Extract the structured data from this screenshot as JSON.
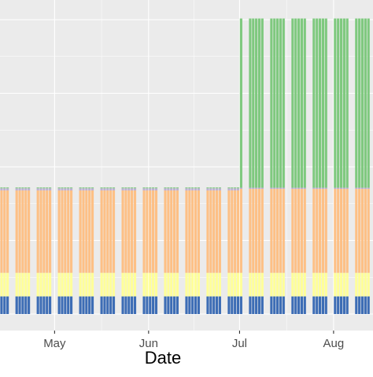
{
  "chart_data": {
    "type": "bar",
    "stacked": true,
    "title": "",
    "xlabel": "Date",
    "ylabel": "",
    "x_tick_labels": [
      "May",
      "Jun",
      "Jul",
      "Aug"
    ],
    "x_tick_dates": [
      "2022-05-01",
      "2022-06-01",
      "2022-07-01",
      "2022-08-01"
    ],
    "x_range": [
      "2022-04-13",
      "2022-08-14"
    ],
    "y_tick_labels": [],
    "ylim": [
      0,
      100
    ],
    "grid": true,
    "series": [
      {
        "color": "#3D6DB5",
        "values_by_period": {
          "before_jul": 6.0,
          "from_jul": 6.0
        }
      },
      {
        "color": "#FFFF99",
        "values_by_period": {
          "before_jul": 8.0,
          "from_jul": 8.0
        }
      },
      {
        "color": "#FDC086",
        "values_by_period": {
          "before_jul": 28.0,
          "from_jul": 28.5
        }
      },
      {
        "color": "#BEAED4",
        "values_by_period": {
          "before_jul": 0.7,
          "from_jul": 0.4
        }
      },
      {
        "color": "#7FC97F",
        "values_by_period": {
          "before_jul": 0.3,
          "from_jul": 57.5
        }
      }
    ],
    "bar_dates_note_free": true,
    "week_starts": [
      "2022-04-10",
      "2022-04-17",
      "2022-04-24",
      "2022-05-01",
      "2022-05-08",
      "2022-05-15",
      "2022-05-22",
      "2022-05-29",
      "2022-06-05",
      "2022-06-12",
      "2022-06-19",
      "2022-06-26",
      "2022-07-03",
      "2022-07-10",
      "2022-07-17",
      "2022-07-24",
      "2022-07-31",
      "2022-08-07"
    ],
    "weekday_count": 5
  }
}
